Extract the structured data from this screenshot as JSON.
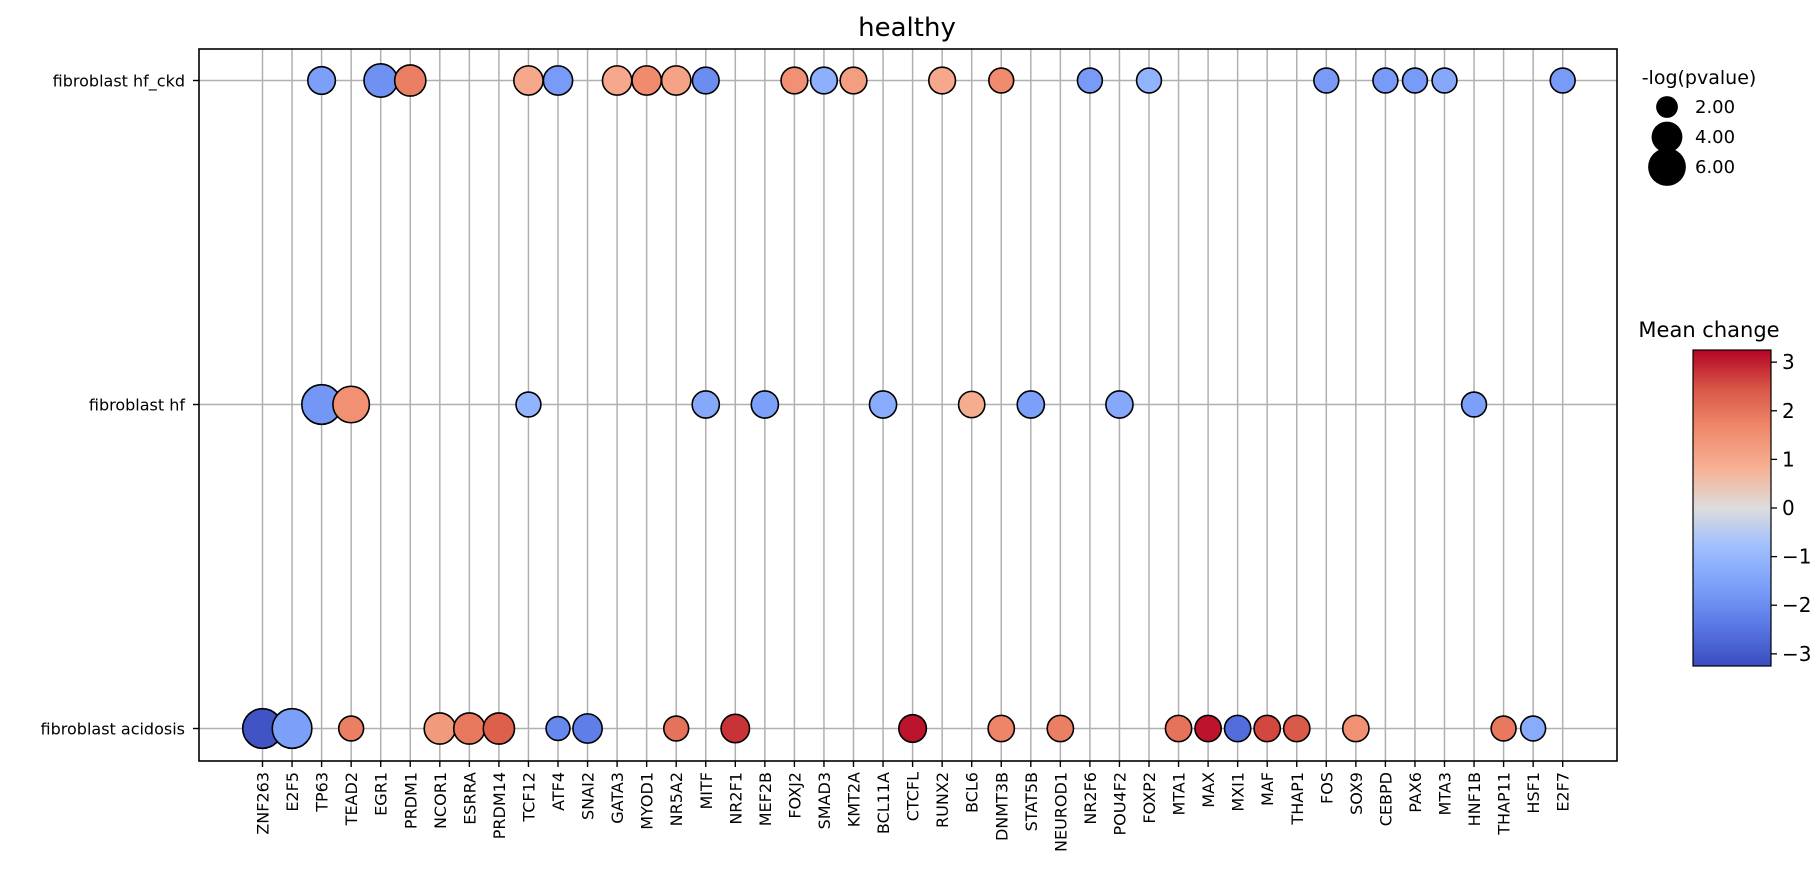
{
  "chart_data": {
    "type": "scatter",
    "title": "healthy",
    "xlabel": "",
    "ylabel": "",
    "grid": true,
    "genes": [
      "ZNF263",
      "E2F5",
      "TP63",
      "TEAD2",
      "EGR1",
      "PRDM1",
      "NCOR1",
      "ESRRA",
      "PRDM14",
      "TCF12",
      "ATF4",
      "SNAI2",
      "GATA3",
      "MYOD1",
      "NR5A2",
      "MITF",
      "NR2F1",
      "MEF2B",
      "FOXJ2",
      "SMAD3",
      "KMT2A",
      "BCL11A",
      "CTCFL",
      "RUNX2",
      "BCL6",
      "DNMT3B",
      "STAT5B",
      "NEUROD1",
      "NR2F6",
      "POU4F2",
      "FOXP2",
      "MTA1",
      "MAX",
      "MXI1",
      "MAF",
      "THAP1",
      "FOS",
      "SOX9",
      "CEBPD",
      "PAX6",
      "MTA3",
      "HNF1B",
      "THAP11",
      "HSF1",
      "E2F7"
    ],
    "groups": [
      "fibroblast hf_ckd",
      "fibroblast hf",
      "fibroblast acidosis"
    ],
    "points": [
      {
        "group": "fibroblast hf_ckd",
        "gene": "TP63",
        "mean_change": -1.6,
        "neg_log_p": 3.2
      },
      {
        "group": "fibroblast hf_ckd",
        "gene": "EGR1",
        "mean_change": -1.9,
        "neg_log_p": 4.7
      },
      {
        "group": "fibroblast hf_ckd",
        "gene": "PRDM1",
        "mean_change": 1.8,
        "neg_log_p": 4.1
      },
      {
        "group": "fibroblast hf_ckd",
        "gene": "TCF12",
        "mean_change": 1.0,
        "neg_log_p": 3.6
      },
      {
        "group": "fibroblast hf_ckd",
        "gene": "ATF4",
        "mean_change": -1.7,
        "neg_log_p": 3.6
      },
      {
        "group": "fibroblast hf_ckd",
        "gene": "GATA3",
        "mean_change": 1.0,
        "neg_log_p": 3.6
      },
      {
        "group": "fibroblast hf_ckd",
        "gene": "MYOD1",
        "mean_change": 1.6,
        "neg_log_p": 3.6
      },
      {
        "group": "fibroblast hf_ckd",
        "gene": "NR5A2",
        "mean_change": 1.1,
        "neg_log_p": 3.6
      },
      {
        "group": "fibroblast hf_ckd",
        "gene": "MITF",
        "mean_change": -2.0,
        "neg_log_p": 3.0
      },
      {
        "group": "fibroblast hf_ckd",
        "gene": "FOXJ2",
        "mean_change": 1.5,
        "neg_log_p": 3.0
      },
      {
        "group": "fibroblast hf_ckd",
        "gene": "SMAD3",
        "mean_change": -1.2,
        "neg_log_p": 3.0
      },
      {
        "group": "fibroblast hf_ckd",
        "gene": "KMT2A",
        "mean_change": 1.2,
        "neg_log_p": 3.0
      },
      {
        "group": "fibroblast hf_ckd",
        "gene": "RUNX2",
        "mean_change": 1.0,
        "neg_log_p": 3.0
      },
      {
        "group": "fibroblast hf_ckd",
        "gene": "DNMT3B",
        "mean_change": 1.6,
        "neg_log_p": 2.6
      },
      {
        "group": "fibroblast hf_ckd",
        "gene": "NR2F6",
        "mean_change": -1.7,
        "neg_log_p": 2.6
      },
      {
        "group": "fibroblast hf_ckd",
        "gene": "FOXP2",
        "mean_change": -1.1,
        "neg_log_p": 2.6
      },
      {
        "group": "fibroblast hf_ckd",
        "gene": "FOS",
        "mean_change": -1.7,
        "neg_log_p": 2.6
      },
      {
        "group": "fibroblast hf_ckd",
        "gene": "CEBPD",
        "mean_change": -1.7,
        "neg_log_p": 2.6
      },
      {
        "group": "fibroblast hf_ckd",
        "gene": "PAX6",
        "mean_change": -1.7,
        "neg_log_p": 2.6
      },
      {
        "group": "fibroblast hf_ckd",
        "gene": "MTA3",
        "mean_change": -1.4,
        "neg_log_p": 2.6
      },
      {
        "group": "fibroblast hf_ckd",
        "gene": "E2F7",
        "mean_change": -1.7,
        "neg_log_p": 2.6
      },
      {
        "group": "fibroblast hf",
        "gene": "TP63",
        "mean_change": -1.8,
        "neg_log_p": 6.6
      },
      {
        "group": "fibroblast hf",
        "gene": "TEAD2",
        "mean_change": 1.5,
        "neg_log_p": 5.6
      },
      {
        "group": "fibroblast hf",
        "gene": "TCF12",
        "mean_change": -1.1,
        "neg_log_p": 2.6
      },
      {
        "group": "fibroblast hf",
        "gene": "MITF",
        "mean_change": -1.4,
        "neg_log_p": 3.1
      },
      {
        "group": "fibroblast hf",
        "gene": "MEF2B",
        "mean_change": -1.6,
        "neg_log_p": 3.1
      },
      {
        "group": "fibroblast hf",
        "gene": "BCL11A",
        "mean_change": -1.3,
        "neg_log_p": 3.1
      },
      {
        "group": "fibroblast hf",
        "gene": "BCL6",
        "mean_change": 0.9,
        "neg_log_p": 2.9
      },
      {
        "group": "fibroblast hf",
        "gene": "STAT5B",
        "mean_change": -1.6,
        "neg_log_p": 3.1
      },
      {
        "group": "fibroblast hf",
        "gene": "POU4F2",
        "mean_change": -1.4,
        "neg_log_p": 3.1
      },
      {
        "group": "fibroblast hf",
        "gene": "HNF1B",
        "mean_change": -1.6,
        "neg_log_p": 2.6
      },
      {
        "group": "fibroblast acidosis",
        "gene": "ZNF263",
        "mean_change": -3.1,
        "neg_log_p": 6.6
      },
      {
        "group": "fibroblast acidosis",
        "gene": "E2F5",
        "mean_change": -1.6,
        "neg_log_p": 6.6
      },
      {
        "group": "fibroblast acidosis",
        "gene": "TEAD2",
        "mean_change": 1.8,
        "neg_log_p": 2.6
      },
      {
        "group": "fibroblast acidosis",
        "gene": "NCOR1",
        "mean_change": 1.3,
        "neg_log_p": 4.1
      },
      {
        "group": "fibroblast acidosis",
        "gene": "ESRRA",
        "mean_change": 1.9,
        "neg_log_p": 4.1
      },
      {
        "group": "fibroblast acidosis",
        "gene": "PRDM14",
        "mean_change": 2.3,
        "neg_log_p": 4.1
      },
      {
        "group": "fibroblast acidosis",
        "gene": "ATF4",
        "mean_change": -2.1,
        "neg_log_p": 2.4
      },
      {
        "group": "fibroblast acidosis",
        "gene": "SNAI2",
        "mean_change": -2.3,
        "neg_log_p": 3.6
      },
      {
        "group": "fibroblast acidosis",
        "gene": "NR5A2",
        "mean_change": 2.0,
        "neg_log_p": 2.6
      },
      {
        "group": "fibroblast acidosis",
        "gene": "NR2F1",
        "mean_change": 2.8,
        "neg_log_p": 3.4
      },
      {
        "group": "fibroblast acidosis",
        "gene": "CTCFL",
        "mean_change": 3.1,
        "neg_log_p": 3.2
      },
      {
        "group": "fibroblast acidosis",
        "gene": "DNMT3B",
        "mean_change": 1.7,
        "neg_log_p": 2.9
      },
      {
        "group": "fibroblast acidosis",
        "gene": "NEUROD1",
        "mean_change": 1.8,
        "neg_log_p": 2.9
      },
      {
        "group": "fibroblast acidosis",
        "gene": "MTA1",
        "mean_change": 2.0,
        "neg_log_p": 2.9
      },
      {
        "group": "fibroblast acidosis",
        "gene": "MAX",
        "mean_change": 3.1,
        "neg_log_p": 2.9
      },
      {
        "group": "fibroblast acidosis",
        "gene": "MXI1",
        "mean_change": -2.6,
        "neg_log_p": 2.9
      },
      {
        "group": "fibroblast acidosis",
        "gene": "MAF",
        "mean_change": 2.6,
        "neg_log_p": 2.9
      },
      {
        "group": "fibroblast acidosis",
        "gene": "THAP1",
        "mean_change": 2.4,
        "neg_log_p": 2.9
      },
      {
        "group": "fibroblast acidosis",
        "gene": "SOX9",
        "mean_change": 1.5,
        "neg_log_p": 2.9
      },
      {
        "group": "fibroblast acidosis",
        "gene": "THAP11",
        "mean_change": 1.9,
        "neg_log_p": 2.6
      },
      {
        "group": "fibroblast acidosis",
        "gene": "HSF1",
        "mean_change": -1.3,
        "neg_log_p": 2.6
      }
    ],
    "size_legend": {
      "title": "-log(pvalue)",
      "entries": [
        {
          "value": 2.0,
          "label": "2.00"
        },
        {
          "value": 4.0,
          "label": "4.00"
        },
        {
          "value": 6.0,
          "label": "6.00"
        }
      ],
      "placement": "right-top"
    },
    "colorbar": {
      "title": "Mean change",
      "vmin": -3.25,
      "vmax": 3.25,
      "ticks": [
        {
          "value": 3,
          "label": "3"
        },
        {
          "value": 2,
          "label": "2"
        },
        {
          "value": 1,
          "label": "1"
        },
        {
          "value": 0,
          "label": "0"
        },
        {
          "value": -1,
          "label": "−1"
        },
        {
          "value": -2,
          "label": "−2"
        },
        {
          "value": -3,
          "label": "−3"
        }
      ],
      "colormap": "coolwarm",
      "placement": "right-middle"
    }
  }
}
